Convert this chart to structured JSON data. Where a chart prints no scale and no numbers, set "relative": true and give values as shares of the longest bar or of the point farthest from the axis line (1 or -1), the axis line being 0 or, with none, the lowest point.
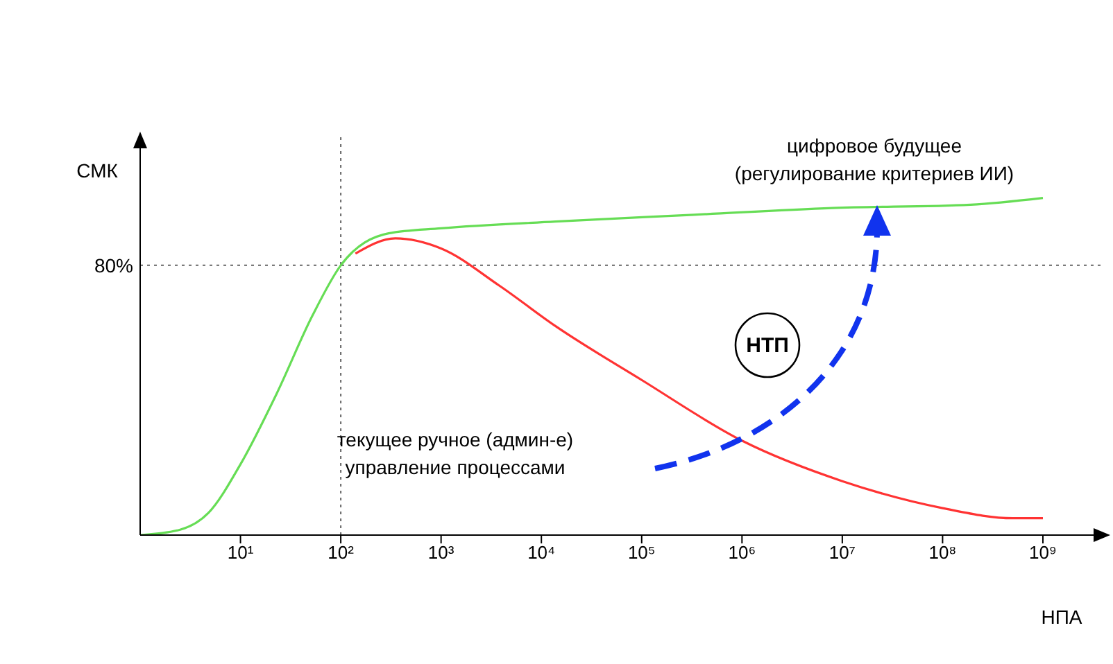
{
  "chart_data": {
    "type": "line",
    "relative": true,
    "xlabel": "НПА",
    "ylabel": "СМК",
    "log": "x",
    "xlim": [
      1,
      4000000000
    ],
    "xticks": [
      {
        "value": 10,
        "label": "10¹"
      },
      {
        "value": 100,
        "label": "10²"
      },
      {
        "value": 1000,
        "label": "10³"
      },
      {
        "value": 10000,
        "label": "10⁴"
      },
      {
        "value": 100000,
        "label": "10⁵"
      },
      {
        "value": 1000000,
        "label": "10⁶"
      },
      {
        "value": 10000000,
        "label": "10⁷"
      },
      {
        "value": 100000000,
        "label": "10⁸"
      },
      {
        "value": 1000000000,
        "label": "10⁹"
      }
    ],
    "series": [
      {
        "color": "#66dd55",
        "x": [
          1,
          2.5,
          4.8,
          10,
          23,
          52,
          100,
          300,
          1000,
          13800,
          331000,
          7900000,
          190000000,
          1000000000
        ],
        "values": [
          0,
          0.016,
          0.066,
          0.21,
          0.42,
          0.65,
          0.8,
          0.895,
          0.91,
          0.93,
          0.95,
          0.97,
          0.98,
          1
        ]
      },
      {
        "color": "#ff3333",
        "x": [
          140,
          350,
          1000,
          3800,
          13800,
          100000,
          1000000,
          10000000,
          100000000,
          500000000,
          1000000000
        ],
        "values": [
          0.835,
          0.88,
          0.85,
          0.74,
          0.62,
          0.46,
          0.28,
          0.16,
          0.08,
          0.05,
          0.05
        ]
      }
    ],
    "ref_lines": [
      {
        "axis": "y",
        "value": 0.8,
        "label": "80%",
        "line_style": "dotted"
      },
      {
        "axis": "x",
        "value": 100,
        "label": null,
        "line_style": "dotted"
      }
    ],
    "annotations": [
      "цифровое будущее\n(регулирование критериев ИИ)",
      "текущее ручное (админ-е)\nуправление процессами",
      "НТП"
    ],
    "grid": false,
    "marker": "none",
    "line_style": "solid"
  }
}
